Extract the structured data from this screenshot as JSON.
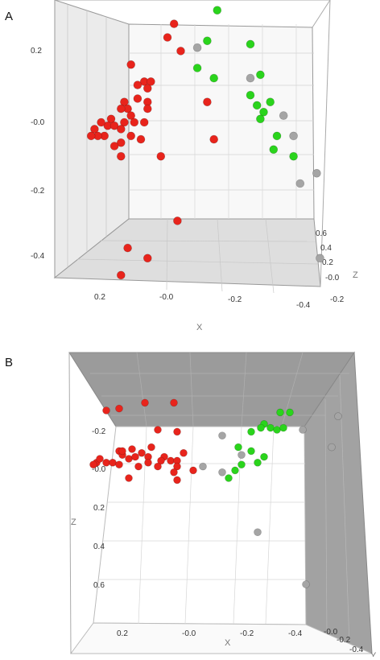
{
  "panels": [
    {
      "letter": "A",
      "chart_data": {
        "type": "scatter",
        "projection": "3d",
        "xlabel": "X",
        "ylabel": "",
        "zlabel": "Z",
        "x_ticks": [
          "0.2",
          "-0.0",
          "-0.2",
          "-0.4"
        ],
        "y_ticks": [
          "0.2",
          "-0.0",
          "-0.2",
          "-0.4"
        ],
        "z_ticks": [
          "0.6",
          "0.4",
          "0.2",
          "-0.0",
          "-0.2"
        ],
        "grid": true,
        "series": [
          {
            "color": "#e8241c",
            "points": [
              [
                -0.02,
                0.29
              ],
              [
                0.0,
                0.25
              ],
              [
                0.11,
                0.17
              ],
              [
                -0.04,
                0.21
              ],
              [
                0.07,
                0.12
              ],
              [
                0.05,
                0.12
              ],
              [
                0.09,
                0.11
              ],
              [
                0.06,
                0.1
              ],
              [
                0.06,
                0.06
              ],
              [
                0.09,
                0.07
              ],
              [
                0.13,
                0.06
              ],
              [
                0.12,
                0.04
              ],
              [
                0.14,
                0.04
              ],
              [
                0.11,
                0.02
              ],
              [
                0.13,
                0.0
              ],
              [
                0.17,
                0.01
              ],
              [
                0.18,
                -0.01
              ],
              [
                0.16,
                -0.01
              ],
              [
                0.2,
                0.0
              ],
              [
                0.22,
                -0.02
              ],
              [
                0.19,
                -0.04
              ],
              [
                0.21,
                -0.04
              ],
              [
                0.23,
                -0.04
              ],
              [
                0.14,
                -0.02
              ],
              [
                0.07,
                0.0
              ],
              [
                0.1,
                0.0
              ],
              [
                0.14,
                -0.06
              ],
              [
                0.16,
                -0.07
              ],
              [
                0.08,
                -0.05
              ],
              [
                0.11,
                -0.04
              ],
              [
                0.06,
                0.04
              ],
              [
                -0.12,
                0.06
              ],
              [
                -0.14,
                -0.05
              ],
              [
                0.02,
                -0.1
              ],
              [
                0.14,
                -0.1
              ],
              [
                -0.03,
                -0.29
              ],
              [
                0.12,
                -0.37
              ],
              [
                0.06,
                -0.4
              ],
              [
                0.14,
                -0.45
              ]
            ]
          },
          {
            "color": "#2ad41c",
            "points": [
              [
                -0.15,
                0.33
              ],
              [
                -0.25,
                0.23
              ],
              [
                -0.12,
                0.24
              ],
              [
                -0.09,
                0.16
              ],
              [
                -0.14,
                0.13
              ],
              [
                -0.28,
                0.14
              ],
              [
                -0.25,
                0.08
              ],
              [
                -0.27,
                0.05
              ],
              [
                -0.31,
                0.06
              ],
              [
                -0.29,
                0.03
              ],
              [
                -0.28,
                0.01
              ],
              [
                -0.33,
                -0.04
              ],
              [
                -0.32,
                -0.08
              ],
              [
                -0.38,
                -0.1
              ]
            ]
          },
          {
            "color": "#a5a5a5",
            "points": [
              [
                -0.09,
                0.22
              ],
              [
                -0.25,
                0.13
              ],
              [
                -0.35,
                0.02
              ],
              [
                -0.38,
                -0.04
              ],
              [
                -0.4,
                -0.18
              ],
              [
                -0.45,
                -0.15
              ],
              [
                -0.46,
                -0.4
              ]
            ]
          }
        ]
      }
    },
    {
      "letter": "B",
      "chart_data": {
        "type": "scatter",
        "projection": "3d",
        "xlabel": "X",
        "ylabel": "Z",
        "zlabel": "Y",
        "x_ticks": [
          "0.2",
          "-0.0",
          "-0.2",
          "-0.4"
        ],
        "y_ticks": [
          "-0.2",
          "-0.0",
          "0.2",
          "0.4",
          "0.6"
        ],
        "z_ticks": [
          "-0.0",
          "-0.2",
          "-0.4"
        ],
        "grid": true,
        "series": [
          {
            "color": "#e8241c",
            "points": [
              [
                0.27,
                -0.3
              ],
              [
                0.23,
                -0.31
              ],
              [
                0.15,
                -0.34
              ],
              [
                0.06,
                -0.34
              ],
              [
                0.11,
                -0.2
              ],
              [
                0.05,
                -0.19
              ],
              [
                0.13,
                -0.11
              ],
              [
                0.19,
                -0.1
              ],
              [
                0.23,
                -0.09
              ],
              [
                0.16,
                -0.08
              ],
              [
                0.22,
                -0.07
              ],
              [
                0.2,
                -0.05
              ],
              [
                0.18,
                -0.06
              ],
              [
                0.14,
                -0.06
              ],
              [
                0.09,
                -0.06
              ],
              [
                0.03,
                -0.08
              ],
              [
                0.14,
                -0.03
              ],
              [
                0.1,
                -0.04
              ],
              [
                0.07,
                -0.04
              ],
              [
                0.05,
                -0.04
              ],
              [
                0.3,
                -0.03
              ],
              [
                0.29,
                -0.05
              ],
              [
                0.27,
                -0.03
              ],
              [
                0.25,
                -0.03
              ],
              [
                0.23,
                -0.02
              ],
              [
                0.31,
                -0.02
              ],
              [
                0.17,
                -0.01
              ],
              [
                0.11,
                -0.01
              ],
              [
                0.05,
                -0.01
              ],
              [
                0.0,
                0.01
              ],
              [
                0.06,
                0.02
              ],
              [
                0.2,
                0.05
              ],
              [
                0.05,
                0.06
              ],
              [
                0.22,
                -0.09
              ]
            ]
          },
          {
            "color": "#2ad41c",
            "points": [
              [
                -0.3,
                -0.29
              ],
              [
                -0.27,
                -0.29
              ],
              [
                -0.22,
                -0.23
              ],
              [
                -0.24,
                -0.21
              ],
              [
                -0.21,
                -0.21
              ],
              [
                -0.26,
                -0.2
              ],
              [
                -0.28,
                -0.21
              ],
              [
                -0.18,
                -0.19
              ],
              [
                -0.14,
                -0.11
              ],
              [
                -0.18,
                -0.09
              ],
              [
                -0.22,
                -0.06
              ],
              [
                -0.2,
                -0.03
              ],
              [
                -0.15,
                -0.02
              ],
              [
                -0.13,
                0.01
              ],
              [
                -0.11,
                0.05
              ]
            ]
          },
          {
            "color": "#a5a5a5",
            "points": [
              [
                -0.09,
                -0.17
              ],
              [
                -0.15,
                -0.07
              ],
              [
                -0.03,
                -0.01
              ],
              [
                -0.09,
                0.02
              ],
              [
                -0.34,
                -0.2
              ],
              [
                -0.45,
                -0.27
              ],
              [
                -0.43,
                -0.11
              ],
              [
                -0.2,
                0.33
              ],
              [
                -0.35,
                0.6
              ]
            ]
          }
        ]
      }
    }
  ]
}
